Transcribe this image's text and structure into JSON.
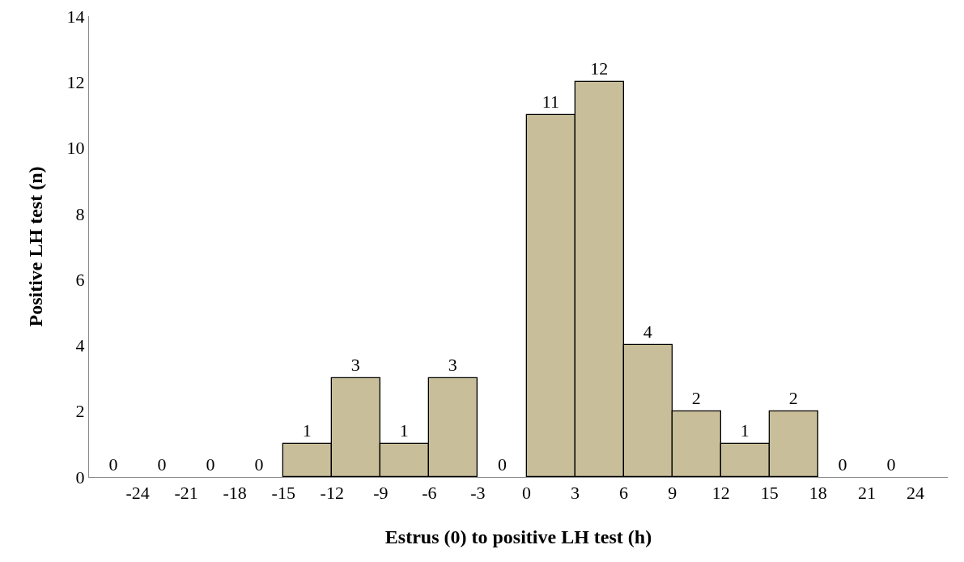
{
  "chart_data": {
    "type": "histogram",
    "xlabel": "Estrus (0) to positive LH test (h)",
    "ylabel": "Positive LH test (n)",
    "bins": [
      -27,
      -24,
      -21,
      -18,
      -15,
      -12,
      -9,
      -6,
      -3,
      0,
      3,
      6,
      9,
      12,
      15,
      18,
      21,
      24
    ],
    "values": [
      0,
      0,
      0,
      0,
      1,
      3,
      1,
      3,
      0,
      11,
      12,
      4,
      2,
      1,
      2,
      0,
      0
    ],
    "color": "#c8bf9a",
    "data_labels": true,
    "grid": false,
    "xlim": [
      -27,
      26
    ],
    "xticks": [
      -24,
      -21,
      -18,
      -15,
      -12,
      -9,
      -6,
      -3,
      0,
      3,
      6,
      9,
      12,
      15,
      18,
      21,
      24
    ],
    "ylim": [
      0,
      14
    ],
    "yticks": [
      0,
      2,
      4,
      6,
      8,
      10,
      12,
      14
    ]
  }
}
